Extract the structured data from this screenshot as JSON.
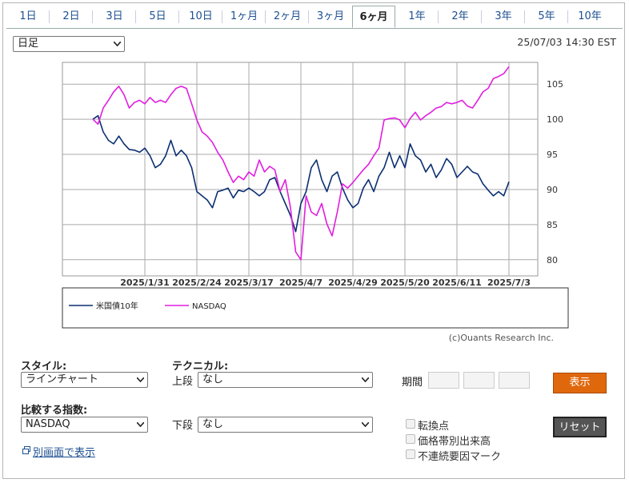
{
  "tabs": [
    {
      "label": "1日"
    },
    {
      "label": "2日"
    },
    {
      "label": "3日"
    },
    {
      "label": "5日"
    },
    {
      "label": "10日"
    },
    {
      "label": "1ヶ月"
    },
    {
      "label": "2ヶ月"
    },
    {
      "label": "3ヶ月"
    },
    {
      "label": "6ヶ月",
      "active": true
    },
    {
      "label": "1年"
    },
    {
      "label": "2年"
    },
    {
      "label": "3年"
    },
    {
      "label": "5年"
    },
    {
      "label": "10年"
    }
  ],
  "interval_select": "日足",
  "timestamp": "25/07/03 14:30 EST",
  "chart_data": {
    "type": "line",
    "categories": [
      null,
      null,
      null,
      null,
      null,
      null,
      null,
      null,
      null,
      null,
      "2025/1/31",
      null,
      null,
      null,
      null,
      null,
      null,
      null,
      null,
      null,
      "2025/2/24",
      null,
      null,
      null,
      null,
      null,
      null,
      null,
      null,
      null,
      "2025/3/17",
      null,
      null,
      null,
      null,
      null,
      null,
      null,
      null,
      null,
      "2025/4/7",
      null,
      null,
      null,
      null,
      null,
      null,
      null,
      null,
      null,
      "2025/4/29",
      null,
      null,
      null,
      null,
      null,
      null,
      null,
      null,
      null,
      "2025/5/20",
      null,
      null,
      null,
      null,
      null,
      null,
      null,
      null,
      null,
      "2025/6/11",
      null,
      null,
      null,
      null,
      null,
      null,
      null,
      null,
      null,
      "2025/7/3"
    ],
    "series": [
      {
        "name": "米国債10年",
        "color": "#0b2f72",
        "values": [
          100.0,
          100.5,
          98.2,
          97.0,
          96.5,
          97.6,
          96.5,
          95.7,
          95.6,
          95.3,
          95.9,
          94.8,
          93.1,
          93.6,
          94.8,
          97.0,
          94.8,
          95.6,
          94.8,
          93.1,
          89.7,
          89.1,
          88.5,
          87.4,
          89.7,
          89.9,
          90.2,
          88.8,
          89.9,
          89.7,
          90.2,
          89.7,
          89.1,
          89.7,
          91.4,
          91.7,
          89.7,
          88.0,
          86.3,
          84.0,
          88.0,
          89.7,
          93.1,
          94.2,
          91.4,
          89.7,
          91.9,
          92.5,
          90.2,
          88.5,
          87.4,
          88.0,
          90.2,
          91.4,
          89.7,
          91.9,
          93.1,
          95.3,
          93.1,
          94.8,
          93.1,
          96.5,
          94.8,
          94.2,
          92.5,
          93.6,
          91.7,
          92.8,
          94.4,
          93.6,
          91.7,
          92.5,
          93.3,
          92.5,
          92.2,
          90.8,
          89.9,
          89.1,
          89.7,
          89.1,
          91.1
        ]
      },
      {
        "name": "NASDAQ",
        "color": "#e11fe0",
        "values": [
          100.0,
          99.3,
          101.6,
          102.7,
          103.9,
          104.7,
          103.5,
          101.6,
          102.4,
          102.7,
          102.2,
          103.1,
          102.4,
          102.7,
          102.4,
          103.5,
          104.4,
          104.7,
          104.4,
          102.2,
          99.9,
          98.2,
          97.6,
          96.7,
          95.3,
          94.2,
          92.5,
          91.0,
          91.9,
          91.4,
          92.5,
          91.9,
          94.2,
          92.5,
          93.3,
          92.8,
          89.7,
          91.4,
          87.4,
          81.1,
          80.0,
          89.1,
          86.8,
          86.3,
          88.0,
          85.1,
          83.4,
          86.8,
          90.8,
          90.2,
          91.0,
          91.9,
          92.8,
          93.6,
          94.8,
          95.9,
          99.9,
          100.1,
          100.2,
          99.9,
          98.8,
          100.1,
          101.0,
          99.9,
          100.5,
          101.0,
          101.6,
          101.8,
          102.4,
          102.2,
          102.4,
          102.7,
          101.9,
          101.6,
          102.7,
          103.9,
          104.4,
          105.8,
          106.1,
          106.5,
          107.5
        ]
      }
    ],
    "ylim": [
      77.7,
      108.1
    ],
    "yticks": [
      80,
      85,
      90,
      95,
      100,
      105
    ],
    "y_axis_side": "right",
    "grid": true
  },
  "copyright": "(c)Ouants Research Inc.",
  "controls": {
    "style_label": "スタイル:",
    "style_value": "ラインチャート",
    "technical_label": "テクニカル:",
    "upper_label": "上段",
    "upper_value": "なし",
    "period_label": "期間",
    "compare_label": "比較する指数:",
    "compare_value": "NASDAQ",
    "lower_label": "下段",
    "lower_value": "なし",
    "checkboxes": [
      "転換点",
      "価格帯別出来高",
      "不連続要因マーク"
    ],
    "show_button": "表示",
    "reset_button": "リセット",
    "popup_link": "別画面で表示"
  }
}
